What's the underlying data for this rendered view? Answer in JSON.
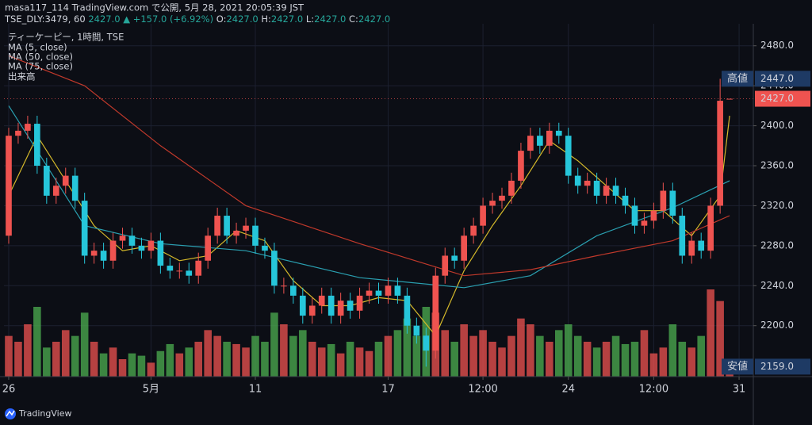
{
  "header": {
    "line1": "masa117_114 TradingView.com で公開, 5月 28, 2021 20:05:39 JST",
    "symbol": "TSE_DLY:3479, 60",
    "last": "2427.0",
    "change": "▲ +157.0 (+6.92%)",
    "ohlc": [
      [
        "O:",
        "2427.0"
      ],
      [
        "H:",
        "2427.0"
      ],
      [
        "L:",
        "2427.0"
      ],
      [
        "C:",
        "2427.0"
      ]
    ]
  },
  "footer": {
    "brand": "TradingView"
  },
  "chart_data": {
    "type": "candlestick",
    "title": "ティーケーピー, 1時間, TSE",
    "up_color": "#ef5350",
    "down_color": "#26c6da",
    "open": [
      2290,
      2390,
      2395,
      2402,
      2360,
      2330,
      2340,
      2350,
      2325,
      2270,
      2275,
      2265,
      2285,
      2290,
      2280,
      2275,
      2285,
      2260,
      2255,
      2255,
      2250,
      2265,
      2290,
      2310,
      2290,
      2295,
      2300,
      2280,
      2275,
      2240,
      2240,
      2230,
      2210,
      2220,
      2230,
      2210,
      2225,
      2215,
      2230,
      2235,
      2230,
      2240,
      2230,
      2200,
      2190,
      2175,
      2250,
      2270,
      2265,
      2290,
      2300,
      2320,
      2325,
      2330,
      2345,
      2375,
      2390,
      2380,
      2395,
      2390,
      2350,
      2340,
      2345,
      2330,
      2340,
      2330,
      2320,
      2300,
      2305,
      2315,
      2335,
      2310,
      2270,
      2285,
      2275,
      2320,
      2427
    ],
    "high": [
      2398,
      2403,
      2410,
      2410,
      2368,
      2348,
      2358,
      2358,
      2333,
      2283,
      2283,
      2293,
      2298,
      2298,
      2288,
      2293,
      2293,
      2268,
      2263,
      2263,
      2273,
      2298,
      2318,
      2318,
      2303,
      2308,
      2308,
      2288,
      2283,
      2248,
      2248,
      2238,
      2228,
      2238,
      2238,
      2233,
      2233,
      2238,
      2243,
      2243,
      2248,
      2248,
      2238,
      2208,
      2198,
      2258,
      2278,
      2278,
      2298,
      2308,
      2328,
      2333,
      2338,
      2353,
      2383,
      2398,
      2398,
      2403,
      2403,
      2398,
      2358,
      2353,
      2353,
      2348,
      2348,
      2338,
      2328,
      2313,
      2323,
      2343,
      2343,
      2318,
      2293,
      2293,
      2328,
      2447,
      2427
    ],
    "low": [
      2282,
      2382,
      2387,
      2352,
      2322,
      2322,
      2332,
      2317,
      2262,
      2262,
      2257,
      2257,
      2277,
      2272,
      2267,
      2267,
      2252,
      2247,
      2247,
      2242,
      2242,
      2257,
      2282,
      2282,
      2282,
      2287,
      2272,
      2267,
      2232,
      2232,
      2222,
      2202,
      2202,
      2212,
      2202,
      2202,
      2207,
      2207,
      2222,
      2222,
      2222,
      2222,
      2192,
      2182,
      2159,
      2167,
      2242,
      2257,
      2257,
      2282,
      2292,
      2312,
      2317,
      2322,
      2337,
      2367,
      2372,
      2372,
      2382,
      2342,
      2332,
      2332,
      2322,
      2322,
      2322,
      2312,
      2292,
      2292,
      2297,
      2307,
      2302,
      2262,
      2262,
      2267,
      2267,
      2312,
      2427
    ],
    "close": [
      2390,
      2395,
      2402,
      2360,
      2330,
      2340,
      2350,
      2325,
      2270,
      2275,
      2265,
      2285,
      2290,
      2280,
      2275,
      2285,
      2260,
      2255,
      2255,
      2250,
      2265,
      2290,
      2310,
      2290,
      2295,
      2300,
      2280,
      2275,
      2240,
      2240,
      2230,
      2210,
      2220,
      2230,
      2210,
      2225,
      2215,
      2230,
      2235,
      2230,
      2240,
      2230,
      2200,
      2190,
      2175,
      2250,
      2270,
      2265,
      2290,
      2300,
      2320,
      2325,
      2330,
      2345,
      2375,
      2390,
      2380,
      2395,
      2390,
      2350,
      2340,
      2345,
      2330,
      2340,
      2330,
      2320,
      2300,
      2305,
      2315,
      2335,
      2310,
      2270,
      2285,
      2275,
      2320,
      2425,
      2427
    ],
    "volume": {
      "name": "出来高",
      "up_color": "#ef5350",
      "down_color": "#4caf50",
      "values": [
        35,
        30,
        45,
        60,
        25,
        30,
        40,
        35,
        55,
        30,
        20,
        25,
        15,
        20,
        18,
        12,
        22,
        28,
        20,
        25,
        30,
        40,
        35,
        30,
        28,
        25,
        35,
        30,
        55,
        45,
        35,
        40,
        30,
        25,
        28,
        20,
        30,
        25,
        22,
        30,
        35,
        40,
        50,
        35,
        60,
        55,
        40,
        30,
        45,
        35,
        40,
        30,
        25,
        35,
        50,
        45,
        35,
        30,
        40,
        45,
        35,
        30,
        25,
        30,
        35,
        28,
        30,
        40,
        20,
        25,
        45,
        30,
        25,
        35,
        75,
        65,
        10
      ]
    },
    "series": [
      {
        "name": "MA (5, close)",
        "color": "#d4b82a",
        "x": [
          0,
          3,
          6,
          9,
          12,
          15,
          18,
          21,
          24,
          27,
          30,
          33,
          36,
          39,
          42,
          45,
          48,
          51,
          54,
          57,
          60,
          63,
          66,
          69,
          72,
          75,
          76
        ],
        "values": [
          2330,
          2390,
          2345,
          2300,
          2275,
          2280,
          2265,
          2270,
          2295,
          2285,
          2245,
          2220,
          2220,
          2228,
          2225,
          2190,
          2255,
          2300,
          2340,
          2385,
          2365,
          2340,
          2315,
          2315,
          2290,
          2330,
          2410
        ]
      },
      {
        "name": "MA (50, close)",
        "color": "#2a9fb0",
        "x": [
          0,
          8,
          16,
          25,
          37,
          48,
          55,
          62,
          70,
          76
        ],
        "values": [
          2420,
          2300,
          2282,
          2275,
          2248,
          2238,
          2250,
          2290,
          2318,
          2345
        ]
      },
      {
        "name": "MA (75, close)",
        "color": "#c0392b",
        "x": [
          0,
          8,
          16,
          25,
          37,
          48,
          55,
          62,
          70,
          76
        ],
        "values": [
          2470,
          2440,
          2380,
          2320,
          2282,
          2250,
          2256,
          2270,
          2285,
          2310
        ]
      }
    ],
    "xlim": [
      -0.5,
      78.5
    ],
    "xticks": [
      {
        "value": 0,
        "label": "26"
      },
      {
        "value": 15,
        "label": "5月"
      },
      {
        "value": 26,
        "label": "11"
      },
      {
        "value": 40,
        "label": "17"
      },
      {
        "value": 50,
        "label": "12:00"
      },
      {
        "value": 59,
        "label": "24"
      },
      {
        "value": 68,
        "label": "12:00"
      },
      {
        "value": 77,
        "label": "31"
      }
    ],
    "ylim": [
      2149,
      2502
    ],
    "yticks": [
      {
        "value": 2200,
        "label": "2200.0"
      },
      {
        "value": 2240,
        "label": "2240.0"
      },
      {
        "value": 2280,
        "label": "2280.0"
      },
      {
        "value": 2320,
        "label": "2320.0"
      },
      {
        "value": 2360,
        "label": "2360.0"
      },
      {
        "value": 2400,
        "label": "2400.0"
      },
      {
        "value": 2440,
        "label": "2440.0"
      },
      {
        "value": 2480,
        "label": "2480.0"
      }
    ],
    "grid": true,
    "price_labels": [
      {
        "name": "高値",
        "value": 2447,
        "label": "2447.0",
        "color": "#1e3a64"
      },
      {
        "value": 2427,
        "label": "2427.0",
        "color": "#ef5350"
      },
      {
        "name": "安値",
        "value": 2159,
        "label": "2159.0",
        "color": "#1e3a64"
      }
    ]
  }
}
